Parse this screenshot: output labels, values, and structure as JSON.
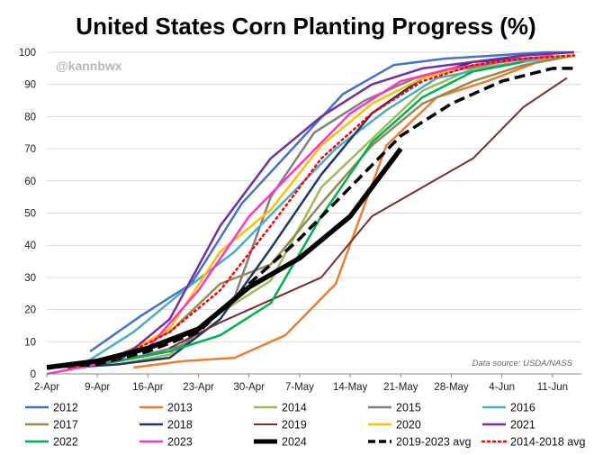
{
  "chart_data": {
    "type": "line",
    "title": "United States Corn Planting Progress (%)",
    "watermark": "@kannbwx",
    "source_note": "Data source: USDA/NASS",
    "xlabel": "",
    "ylabel": "",
    "x_ticks": [
      "2-Apr",
      "9-Apr",
      "16-Apr",
      "23-Apr",
      "30-Apr",
      "7-May",
      "14-May",
      "21-May",
      "28-May",
      "4-Jun",
      "11-Jun"
    ],
    "x_unit": "days since Apr 2",
    "xlim": [
      0,
      74
    ],
    "ylim": [
      0,
      100
    ],
    "y_ticks": [
      0,
      10,
      20,
      30,
      40,
      50,
      60,
      70,
      80,
      90,
      100
    ],
    "grid": "horizontal",
    "series": [
      {
        "name": "2012",
        "color": "#4472c4",
        "dash": "solid",
        "width": 2.5,
        "points": [
          [
            6,
            7
          ],
          [
            13,
            18
          ],
          [
            20,
            28
          ],
          [
            27,
            53
          ],
          [
            34,
            70
          ],
          [
            41,
            87
          ],
          [
            48,
            96
          ],
          [
            55,
            98
          ],
          [
            62,
            99
          ],
          [
            69,
            100
          ],
          [
            73,
            100
          ]
        ]
      },
      {
        "name": "2013",
        "color": "#ed7d31",
        "dash": "solid",
        "width": 2.5,
        "points": [
          [
            12,
            2
          ],
          [
            19,
            4
          ],
          [
            26,
            5
          ],
          [
            33,
            12
          ],
          [
            40,
            28
          ],
          [
            47,
            71
          ],
          [
            54,
            86
          ],
          [
            61,
            91
          ],
          [
            68,
            97
          ],
          [
            73,
            99
          ]
        ]
      },
      {
        "name": "2014",
        "color": "#9bbb59",
        "dash": "solid",
        "width": 2.5,
        "points": [
          [
            3,
            2
          ],
          [
            10,
            3
          ],
          [
            17,
            6
          ],
          [
            24,
            19
          ],
          [
            31,
            29
          ],
          [
            38,
            58
          ],
          [
            45,
            73
          ],
          [
            52,
            88
          ],
          [
            59,
            95
          ],
          [
            66,
            97
          ],
          [
            73,
            99
          ]
        ]
      },
      {
        "name": "2015",
        "color": "#808080",
        "dash": "solid",
        "width": 2.5,
        "points": [
          [
            5,
            2
          ],
          [
            12,
            5
          ],
          [
            19,
            9
          ],
          [
            26,
            24
          ],
          [
            31,
            55
          ],
          [
            37,
            75
          ],
          [
            44,
            85
          ],
          [
            51,
            92
          ],
          [
            58,
            95
          ],
          [
            65,
            98
          ],
          [
            73,
            99
          ]
        ]
      },
      {
        "name": "2016",
        "color": "#4bacc6",
        "dash": "solid",
        "width": 2.5,
        "points": [
          [
            5,
            3
          ],
          [
            12,
            13
          ],
          [
            19,
            26
          ],
          [
            26,
            38
          ],
          [
            33,
            54
          ],
          [
            40,
            70
          ],
          [
            47,
            82
          ],
          [
            54,
            92
          ],
          [
            61,
            95
          ],
          [
            68,
            98
          ],
          [
            73,
            99
          ]
        ]
      },
      {
        "name": "2017",
        "color": "#948a54",
        "dash": "solid",
        "width": 2.5,
        "points": [
          [
            3,
            2
          ],
          [
            10,
            6
          ],
          [
            17,
            13
          ],
          [
            24,
            28
          ],
          [
            31,
            34
          ],
          [
            38,
            53
          ],
          [
            45,
            71
          ],
          [
            52,
            84
          ],
          [
            59,
            91
          ],
          [
            66,
            96
          ],
          [
            73,
            99
          ]
        ]
      },
      {
        "name": "2018",
        "color": "#1f3864",
        "dash": "solid",
        "width": 2.5,
        "points": [
          [
            3,
            2
          ],
          [
            10,
            3
          ],
          [
            17,
            5
          ],
          [
            24,
            17
          ],
          [
            31,
            39
          ],
          [
            38,
            62
          ],
          [
            45,
            81
          ],
          [
            52,
            92
          ],
          [
            59,
            97
          ],
          [
            66,
            98
          ],
          [
            73,
            99
          ]
        ]
      },
      {
        "name": "2019",
        "color": "#7b2c2c",
        "dash": "solid",
        "width": 2.0,
        "points": [
          [
            17,
            8
          ],
          [
            24,
            16
          ],
          [
            31,
            23
          ],
          [
            38,
            30
          ],
          [
            45,
            49
          ],
          [
            52,
            58
          ],
          [
            59,
            67
          ],
          [
            66,
            83
          ],
          [
            72,
            92
          ]
        ]
      },
      {
        "name": "2020",
        "color": "#ffc000",
        "dash": "solid",
        "width": 2.5,
        "points": [
          [
            3,
            2
          ],
          [
            10,
            5
          ],
          [
            17,
            14
          ],
          [
            24,
            38
          ],
          [
            31,
            51
          ],
          [
            38,
            71
          ],
          [
            45,
            84
          ],
          [
            52,
            92
          ],
          [
            59,
            96
          ],
          [
            66,
            98
          ],
          [
            73,
            99
          ]
        ]
      },
      {
        "name": "2021",
        "color": "#7030a0",
        "dash": "solid",
        "width": 2.5,
        "points": [
          [
            3,
            2
          ],
          [
            10,
            4
          ],
          [
            17,
            17
          ],
          [
            24,
            46
          ],
          [
            31,
            67
          ],
          [
            38,
            80
          ],
          [
            45,
            90
          ],
          [
            52,
            95
          ],
          [
            59,
            97
          ],
          [
            66,
            99
          ],
          [
            73,
            100
          ]
        ]
      },
      {
        "name": "2022",
        "color": "#00b050",
        "dash": "solid",
        "width": 2.5,
        "points": [
          [
            3,
            2
          ],
          [
            10,
            4
          ],
          [
            17,
            7
          ],
          [
            24,
            12
          ],
          [
            31,
            22
          ],
          [
            38,
            49
          ],
          [
            45,
            72
          ],
          [
            52,
            86
          ],
          [
            59,
            94
          ],
          [
            66,
            97
          ]
        ]
      },
      {
        "name": "2023",
        "color": "#ff33cc",
        "dash": "solid",
        "width": 2.5,
        "points": [
          [
            0,
            0
          ],
          [
            7,
            3
          ],
          [
            14,
            8
          ],
          [
            21,
            26
          ],
          [
            28,
            49
          ],
          [
            35,
            65
          ],
          [
            42,
            81
          ],
          [
            49,
            91
          ],
          [
            56,
            95
          ],
          [
            63,
            97
          ],
          [
            70,
            99
          ]
        ]
      },
      {
        "name": "2024",
        "color": "#000000",
        "dash": "solid",
        "width": 5.5,
        "points": [
          [
            0,
            2
          ],
          [
            7,
            4
          ],
          [
            14,
            8
          ],
          [
            21,
            14
          ],
          [
            28,
            27
          ],
          [
            35,
            36
          ],
          [
            42,
            49
          ],
          [
            49,
            70
          ]
        ]
      },
      {
        "name": "2019-2023 avg",
        "color": "#000000",
        "dash": "dashed",
        "width": 3.5,
        "points": [
          [
            0,
            2
          ],
          [
            7,
            3
          ],
          [
            14,
            7
          ],
          [
            21,
            13
          ],
          [
            28,
            28
          ],
          [
            35,
            42
          ],
          [
            42,
            58
          ],
          [
            49,
            74
          ],
          [
            56,
            84
          ],
          [
            63,
            91
          ],
          [
            70,
            95
          ],
          [
            73,
            95
          ]
        ]
      },
      {
        "name": "2014-2018 avg",
        "color": "#ff0000",
        "dash": "dotted",
        "width": 2.5,
        "points": [
          [
            3,
            2
          ],
          [
            10,
            5
          ],
          [
            17,
            13
          ],
          [
            24,
            26
          ],
          [
            31,
            46
          ],
          [
            38,
            67
          ],
          [
            45,
            81
          ],
          [
            52,
            91
          ],
          [
            59,
            96
          ],
          [
            66,
            98
          ],
          [
            73,
            99
          ]
        ]
      }
    ]
  }
}
